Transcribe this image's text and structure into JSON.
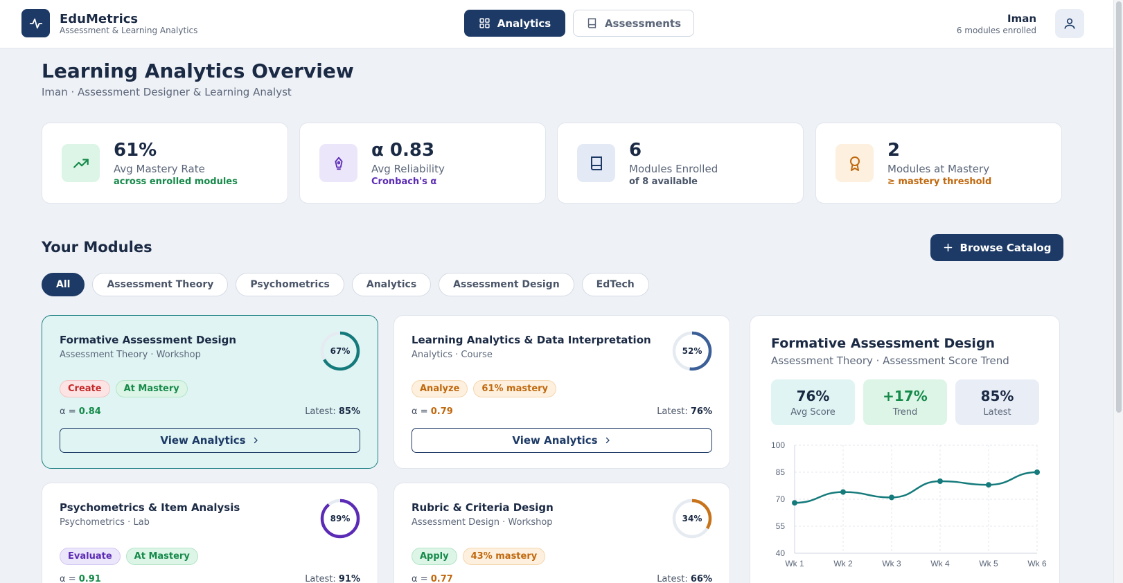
{
  "app": {
    "name": "EduMetrics",
    "tagline": "Assessment & Learning Analytics"
  },
  "nav": {
    "analytics": "Analytics",
    "assessments": "Assessments"
  },
  "user": {
    "name": "Iman",
    "enrolled": "6 modules enrolled"
  },
  "page": {
    "title": "Learning Analytics Overview",
    "subtitle": "Iman · Assessment Designer & Learning Analyst"
  },
  "stats": [
    {
      "value": "61%",
      "label": "Avg Mastery Rate",
      "note": "across enrolled modules",
      "icon": "trending-up-icon",
      "color": "#168a4a",
      "bg": "#dcf5e6"
    },
    {
      "value": "α 0.83",
      "label": "Avg Reliability",
      "note": "Cronbach's α",
      "icon": "pen-nib-icon",
      "color": "#5b2bb5",
      "bg": "#ece6fb"
    },
    {
      "value": "6",
      "label": "Modules Enrolled",
      "note": "of 8 available",
      "icon": "book-icon",
      "color": "#1d3a66",
      "bg": "#e3eaf5"
    },
    {
      "value": "2",
      "label": "Modules at Mastery",
      "note": "≥ mastery threshold",
      "icon": "award-icon",
      "color": "#c0680d",
      "bg": "#fdf0de"
    }
  ],
  "modules_section": {
    "title": "Your Modules",
    "browse_label": "Browse Catalog"
  },
  "filters": [
    "All",
    "Assessment Theory",
    "Psychometrics",
    "Analytics",
    "Assessment Design",
    "EdTech"
  ],
  "active_filter": "All",
  "modules": [
    {
      "title": "Formative Assessment Design",
      "subtitle": "Assessment Theory · Workshop",
      "progress": 67,
      "progress_label": "67%",
      "ring_color": "#157a7b",
      "tag1": "Create",
      "tag2": "At Mastery",
      "alpha_label": "α = ",
      "alpha": "0.84",
      "alpha_color": "#168a4a",
      "latest_label": "Latest: ",
      "latest": "85%",
      "button": "View Analytics"
    },
    {
      "title": "Learning Analytics & Data Interpretation",
      "subtitle": "Analytics · Course",
      "progress": 52,
      "progress_label": "52%",
      "ring_color": "#3b5f96",
      "tag1": "Analyze",
      "tag2": "61% mastery",
      "alpha_label": "α = ",
      "alpha": "0.79",
      "alpha_color": "#c0680d",
      "latest_label": "Latest: ",
      "latest": "76%",
      "button": "View Analytics"
    },
    {
      "title": "Psychometrics & Item Analysis",
      "subtitle": "Psychometrics · Lab",
      "progress": 89,
      "progress_label": "89%",
      "ring_color": "#5b2bb5",
      "tag1": "Evaluate",
      "tag2": "At Mastery",
      "alpha_label": "α = ",
      "alpha": "0.91",
      "alpha_color": "#168a4a",
      "latest_label": "Latest: ",
      "latest": "91%",
      "button": "View Analytics"
    },
    {
      "title": "Rubric & Criteria Design",
      "subtitle": "Assessment Design · Workshop",
      "progress": 34,
      "progress_label": "34%",
      "ring_color": "#c8731a",
      "tag1": "Apply",
      "tag2": "43% mastery",
      "alpha_label": "α = ",
      "alpha": "0.77",
      "alpha_color": "#c0680d",
      "latest_label": "Latest: ",
      "latest": "66%",
      "button": "View Analytics"
    }
  ],
  "trend": {
    "title": "Formative Assessment Design",
    "subtitle": "Assessment Theory · Assessment Score Trend",
    "avg_value": "76%",
    "avg_label": "Avg Score",
    "trend_value": "+17%",
    "trend_label": "Trend",
    "latest_value": "85%",
    "latest_label": "Latest"
  },
  "chart_data": {
    "type": "line",
    "categories": [
      "Wk 1",
      "Wk 2",
      "Wk 3",
      "Wk 4",
      "Wk 5",
      "Wk 6"
    ],
    "values": [
      68,
      74,
      71,
      80,
      78,
      85
    ],
    "yticks": [
      40,
      55,
      70,
      85,
      100
    ],
    "ylim": [
      40,
      100
    ],
    "grid": true,
    "color": "#157a7b"
  }
}
